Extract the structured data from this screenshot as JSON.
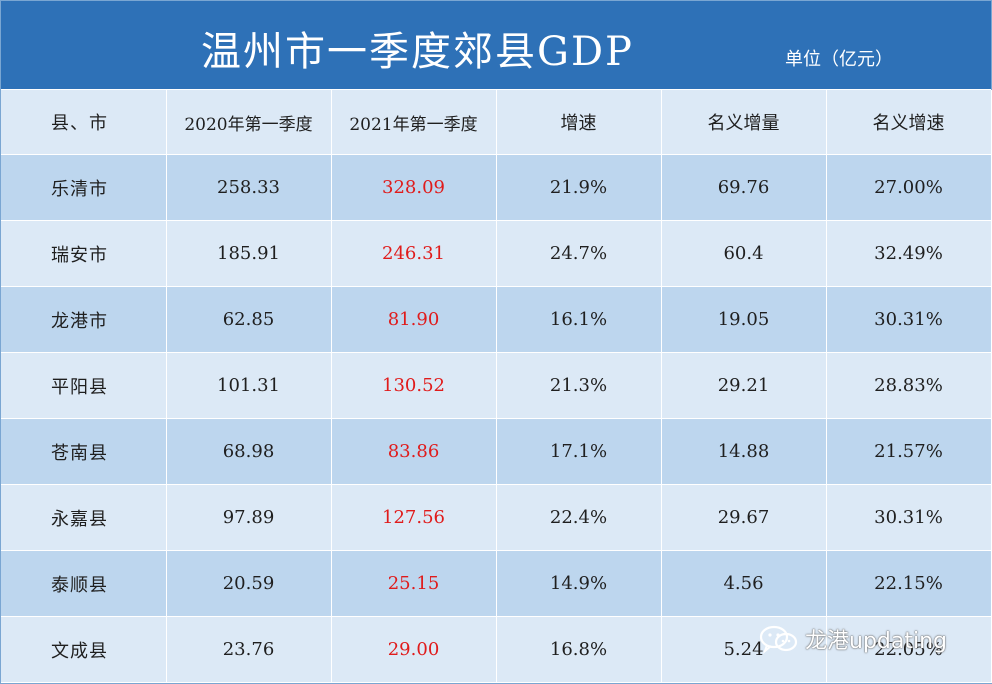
{
  "title": "温州市一季度郊县GDP",
  "unit": "单位（亿元）",
  "columns": [
    "县、市",
    "2020年第一季度",
    "2021年第一季度",
    "增速",
    "名义增量",
    "名义增速"
  ],
  "rows": [
    {
      "name": "乐清市",
      "q2020": "258.33",
      "q2021": "328.09",
      "growth": "21.9%",
      "nominal_increase": "69.76",
      "nominal_growth": "27.00%"
    },
    {
      "name": "瑞安市",
      "q2020": "185.91",
      "q2021": "246.31",
      "growth": "24.7%",
      "nominal_increase": "60.4",
      "nominal_growth": "32.49%"
    },
    {
      "name": "龙港市",
      "q2020": "62.85",
      "q2021": "81.90",
      "growth": "16.1%",
      "nominal_increase": "19.05",
      "nominal_growth": "30.31%"
    },
    {
      "name": "平阳县",
      "q2020": "101.31",
      "q2021": "130.52",
      "growth": "21.3%",
      "nominal_increase": "29.21",
      "nominal_growth": "28.83%"
    },
    {
      "name": "苍南县",
      "q2020": "68.98",
      "q2021": "83.86",
      "growth": "17.1%",
      "nominal_increase": "14.88",
      "nominal_growth": "21.57%"
    },
    {
      "name": "永嘉县",
      "q2020": "97.89",
      "q2021": "127.56",
      "growth": "22.4%",
      "nominal_increase": "29.67",
      "nominal_growth": "30.31%"
    },
    {
      "name": "泰顺县",
      "q2020": "20.59",
      "q2021": "25.15",
      "growth": "14.9%",
      "nominal_increase": "4.56",
      "nominal_growth": "22.15%"
    },
    {
      "name": "文成县",
      "q2020": "23.76",
      "q2021": "29.00",
      "growth": "16.8%",
      "nominal_increase": "5.24",
      "nominal_growth": "22.05%"
    }
  ],
  "watermark": "龙港updating",
  "watermark_icon": "wechat-icon",
  "colors": {
    "header_blue": "#2e71b7",
    "row_dark": "#bdd6ee",
    "row_light": "#dce9f6",
    "highlight_red": "#e01b1b"
  }
}
